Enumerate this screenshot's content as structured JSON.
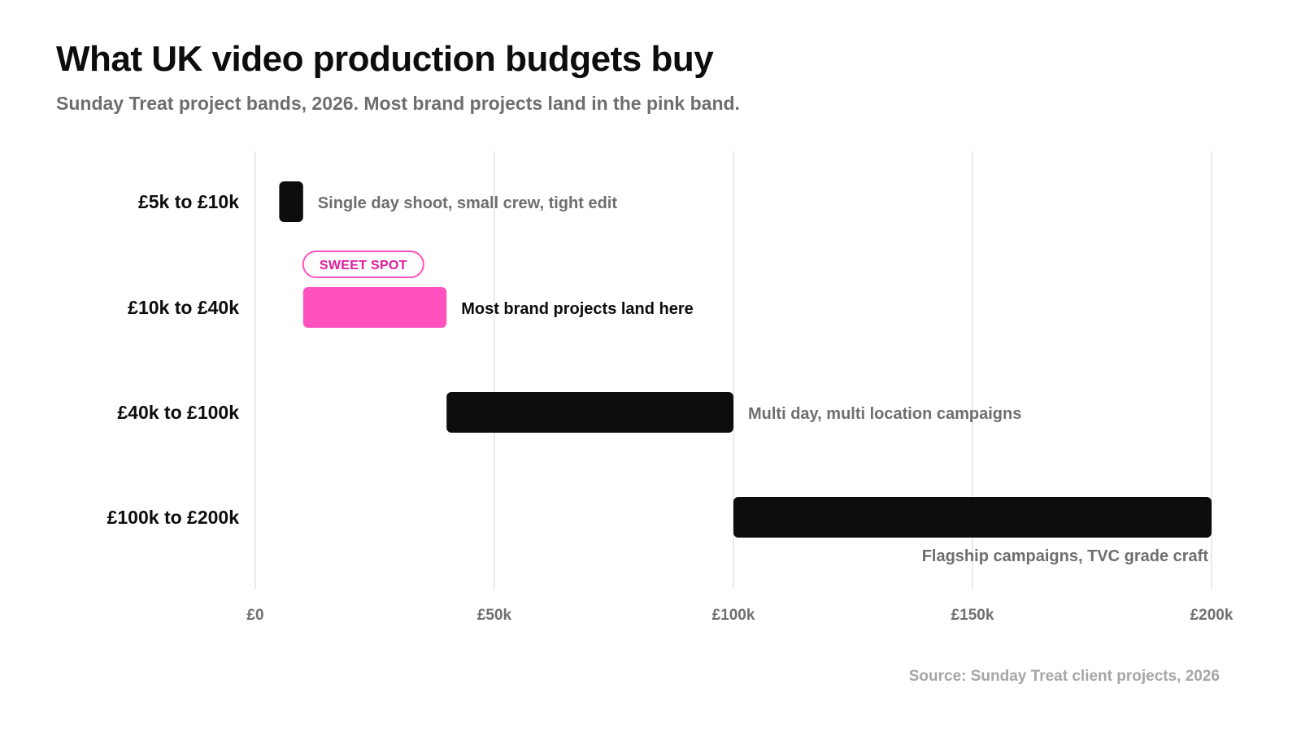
{
  "title": "What UK video production budgets buy",
  "subtitle": "Sunday Treat project bands, 2026. Most brand projects land in the pink band.",
  "source": "Source: Sunday Treat client projects, 2026",
  "colors": {
    "bar": "#0d0d0d",
    "highlight": "#ff52bf",
    "badge_text": "#e01b9c",
    "grid": "#e3e3e3"
  },
  "chart_data": {
    "type": "bar",
    "orientation": "horizontal-range",
    "x_unit": "GBP",
    "xlim": [
      0,
      200000
    ],
    "x_ticks": [
      0,
      50000,
      100000,
      150000,
      200000
    ],
    "x_tick_labels": [
      "£0",
      "£50k",
      "£100k",
      "£150k",
      "£200k"
    ],
    "grid": true,
    "categories": [
      "£5k to £10k",
      "£10k to £40k",
      "£40k to £100k",
      "£100k to £200k"
    ],
    "ranges": [
      {
        "category": "£5k to £10k",
        "start": 5000,
        "end": 10000,
        "note": "Single day shoot, small crew, tight edit",
        "highlight": false,
        "note_position": "right"
      },
      {
        "category": "£10k to £40k",
        "start": 10000,
        "end": 40000,
        "note": "Most brand projects land here",
        "highlight": true,
        "badge": "SWEET SPOT",
        "note_position": "right"
      },
      {
        "category": "£40k to £100k",
        "start": 40000,
        "end": 100000,
        "note": "Multi day, multi location campaigns",
        "highlight": false,
        "note_position": "right"
      },
      {
        "category": "£100k to £200k",
        "start": 100000,
        "end": 200000,
        "note": "Flagship campaigns, TVC grade craft",
        "highlight": false,
        "note_position": "below"
      }
    ]
  }
}
